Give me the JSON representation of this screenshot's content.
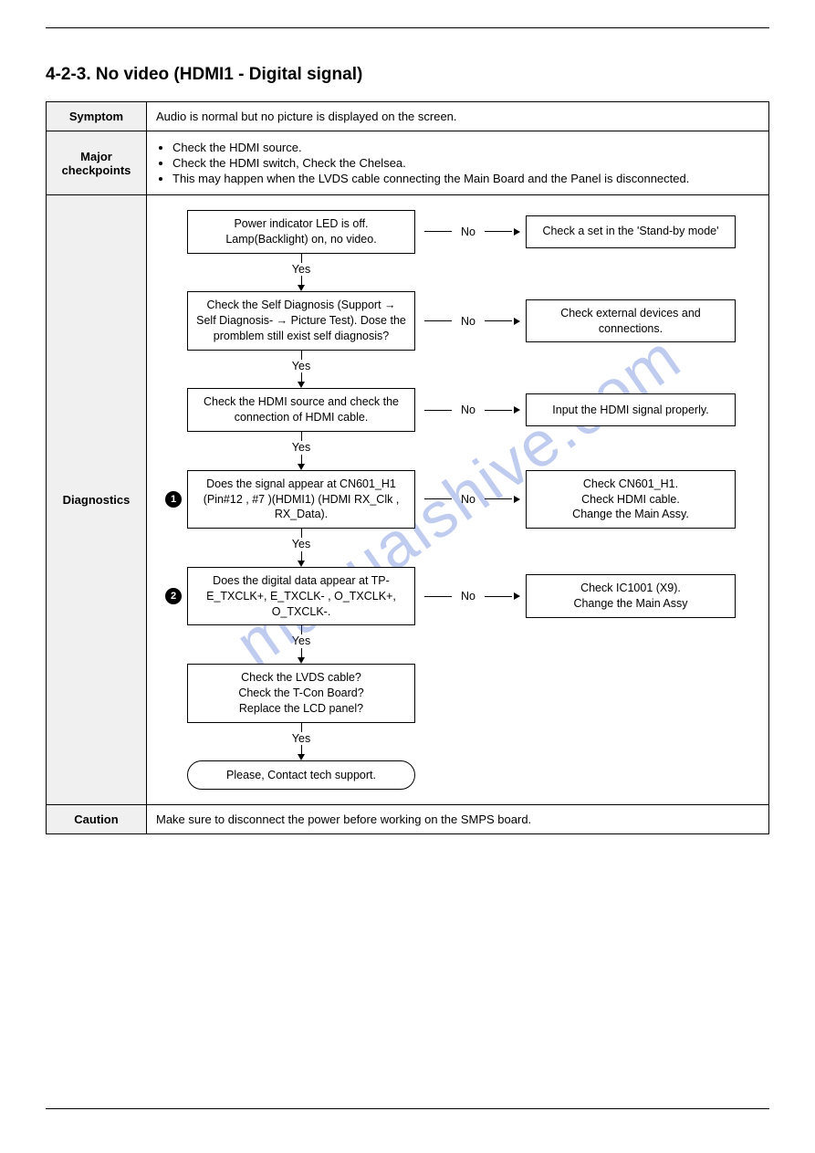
{
  "title": "4-2-3. No video (HDMI1 - Digital signal)",
  "watermark": "manualshive.com",
  "table": {
    "headers": {
      "symptom": "Symptom",
      "checkpoints": "Major checkpoints",
      "diagnostics": "Diagnostics",
      "caution": "Caution"
    },
    "symptom": "Audio is normal but no picture is displayed on the screen.",
    "checkpoints": [
      "Check the HDMI source.",
      "Check the HDMI switch, Check the Chelsea.",
      "This may happen when the LVDS cable connecting the Main Board and the Panel is disconnected."
    ],
    "caution": "Make sure to disconnect the power before working on the SMPS board."
  },
  "flow": {
    "yes": "Yes",
    "no": "No",
    "steps": [
      {
        "badge": null,
        "question": "Power indicator LED is off.\nLamp(Backlight) on, no video.",
        "noResult": "Check a set in the 'Stand-by mode'"
      },
      {
        "badge": null,
        "question": "Check the Self Diagnosis (Support → Self Diagnosis- → Picture Test). Dose the promblem still exist self diagnosis?",
        "noResult": "Check external devices and connections."
      },
      {
        "badge": null,
        "question": "Check the HDMI source and check the connection of HDMI cable.",
        "noResult": "Input the HDMI signal properly."
      },
      {
        "badge": "1",
        "question": "Does the signal appear at CN601_H1 (Pin#12 , #7 )(HDMI1) (HDMI RX_Clk , RX_Data).",
        "noResult": "Check CN601_H1.\nCheck HDMI cable.\nChange the Main Assy."
      },
      {
        "badge": "2",
        "question": "Does the digital data appear at TP-E_TXCLK+, E_TXCLK- , O_TXCLK+, O_TXCLK-.",
        "noResult": "Check IC1001 (X9).\nChange the Main Assy"
      },
      {
        "badge": null,
        "question": "Check the LVDS cable?\nCheck the T-Con Board?\nReplace the LCD panel?",
        "noResult": null
      }
    ],
    "terminal": "Please, Contact tech support."
  },
  "colors": {
    "watermark": "#4a6fd4",
    "headerBg": "#f0f0f0",
    "border": "#000000",
    "background": "#ffffff"
  }
}
